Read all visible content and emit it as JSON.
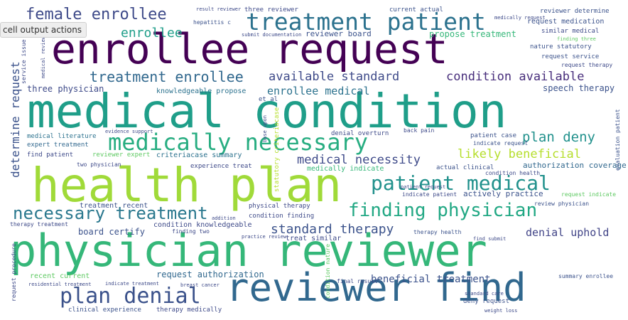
{
  "toolbar": {
    "cell_output_actions": "cell output actions"
  },
  "words": [
    {
      "t": "enrollee request",
      "c": "#440154"
    },
    {
      "t": "medical condition",
      "c": "#1f9e89"
    },
    {
      "t": "health plan",
      "c": "#a0da39"
    },
    {
      "t": "physician reviewer",
      "c": "#35b779"
    },
    {
      "t": "reviewer find",
      "c": "#31688e"
    },
    {
      "t": "treatment patient",
      "c": "#2c728e"
    },
    {
      "t": "medically necessary",
      "c": "#27ad81"
    },
    {
      "t": "patient medical",
      "c": "#21918c"
    },
    {
      "t": "finding physician",
      "c": "#22a884"
    },
    {
      "t": "necessary treatment",
      "c": "#2a788e"
    },
    {
      "t": "plan denial",
      "c": "#3b528b"
    },
    {
      "t": "female enrollee",
      "c": "#3e4a89"
    },
    {
      "t": "treatment enrollee",
      "c": "#31688e"
    },
    {
      "t": "available standard",
      "c": "#3e4a89"
    },
    {
      "t": "condition available",
      "c": "#472d7b"
    },
    {
      "t": "enrollee medical",
      "c": "#2c728e"
    },
    {
      "t": "medical necessity",
      "c": "#3e4a89"
    },
    {
      "t": "likely beneficial",
      "c": "#b5de2b"
    },
    {
      "t": "plan deny",
      "c": "#21918c"
    },
    {
      "t": "standard therapy",
      "c": "#3b528b"
    },
    {
      "t": "denial uphold",
      "c": "#414487"
    },
    {
      "t": "beneficial treatment",
      "c": "#3b528b"
    },
    {
      "t": "enrollee",
      "c": "#1f9e89"
    },
    {
      "t": "determine request",
      "c": "#3b528b"
    },
    {
      "t": "three physician",
      "c": "#3e4a89"
    },
    {
      "t": "knowledgeable propose",
      "c": "#2c728e"
    },
    {
      "t": "speech therapy",
      "c": "#3b528b"
    },
    {
      "t": "propose treatment",
      "c": "#35b779"
    },
    {
      "t": "reviewer board",
      "c": "#3b528b"
    },
    {
      "t": "request authorization",
      "c": "#31688e"
    },
    {
      "t": "authorization coverage",
      "c": "#31688e"
    },
    {
      "t": "actively practice",
      "c": "#3b528b"
    },
    {
      "t": "criteriacase summary",
      "c": "#2c728e"
    },
    {
      "t": "condition knowledgeable",
      "c": "#3e4a89"
    },
    {
      "t": "board certify",
      "c": "#3b528b"
    },
    {
      "t": "treatment recent",
      "c": "#3b528b"
    },
    {
      "t": "medical literature",
      "c": "#2c728e"
    },
    {
      "t": "expert treatment",
      "c": "#31688e"
    },
    {
      "t": "find patient",
      "c": "#3e4a89"
    },
    {
      "t": "reviewer expert",
      "c": "#5ec962"
    },
    {
      "t": "two physician",
      "c": "#3e4a89"
    },
    {
      "t": "experience treat",
      "c": "#3e4a89"
    },
    {
      "t": "medically indicate",
      "c": "#35b779"
    },
    {
      "t": "actual clinical",
      "c": "#3b528b"
    },
    {
      "t": "condition health",
      "c": "#3e4a89"
    },
    {
      "t": "indicate patient",
      "c": "#3e4a89"
    },
    {
      "t": "review physician",
      "c": "#3b528b"
    },
    {
      "t": "request indicate",
      "c": "#5ec962"
    },
    {
      "t": "patient case",
      "c": "#3b528b"
    },
    {
      "t": "denial overturn",
      "c": "#3e4a89"
    },
    {
      "t": "back pain",
      "c": "#3e4a89"
    },
    {
      "t": "indicate request",
      "c": "#3b528b"
    },
    {
      "t": "physical therapy",
      "c": "#3e4a89"
    },
    {
      "t": "condition finding",
      "c": "#3e4a89"
    },
    {
      "t": "treat similar",
      "c": "#3e4a89"
    },
    {
      "t": "therapy health",
      "c": "#3b528b"
    },
    {
      "t": "finding two",
      "c": "#3e4a89"
    },
    {
      "t": "practice review",
      "c": "#3e4a89"
    },
    {
      "t": "therapy treatment",
      "c": "#3e4a89"
    },
    {
      "t": "recent current",
      "c": "#5ec962"
    },
    {
      "t": "residential treatment",
      "c": "#3e4a89"
    },
    {
      "t": "indicate treatment",
      "c": "#3e4a89"
    },
    {
      "t": "clinical experience",
      "c": "#3b528b"
    },
    {
      "t": "therapy medically",
      "c": "#3e4a89"
    },
    {
      "t": "final result",
      "c": "#3e4a89"
    },
    {
      "t": "deny request",
      "c": "#3b528b"
    },
    {
      "t": "summary enrollee",
      "c": "#3b528b"
    },
    {
      "t": "three reviewer",
      "c": "#3e4a89"
    },
    {
      "t": "result reviewer",
      "c": "#3e4a89"
    },
    {
      "t": "current actual",
      "c": "#3b528b"
    },
    {
      "t": "reviewer determine",
      "c": "#3b528b"
    },
    {
      "t": "request medication",
      "c": "#3b528b"
    },
    {
      "t": "similar medical",
      "c": "#3e4a89"
    },
    {
      "t": "finding three",
      "c": "#5ec962"
    },
    {
      "t": "nature statutory",
      "c": "#3b528b"
    },
    {
      "t": "request service",
      "c": "#3b528b"
    },
    {
      "t": "request therapy",
      "c": "#3e4a89"
    },
    {
      "t": "hepatitis c",
      "c": "#3b528b"
    },
    {
      "t": "submit documentation",
      "c": "#3e4a89"
    },
    {
      "t": "service issue",
      "c": "#3e4a89"
    },
    {
      "t": "medical review",
      "c": "#3e4a89"
    },
    {
      "t": "et al",
      "c": "#3b528b"
    },
    {
      "t": "evidence support",
      "c": "#3e4a89"
    },
    {
      "t": "base upon",
      "c": "#3e4a89"
    },
    {
      "t": "addition",
      "c": "#3e4a89"
    },
    {
      "t": "statutory criteriacase",
      "c": "#b5de2b"
    },
    {
      "t": "request procedure",
      "c": "#3e4a89"
    },
    {
      "t": "condition nature",
      "c": "#5ec962"
    },
    {
      "t": "evaluation patient",
      "c": "#3b528b"
    },
    {
      "t": "standard care",
      "c": "#3e4a89"
    },
    {
      "t": "weight loss",
      "c": "#3e4a89"
    },
    {
      "t": "breast cancer",
      "c": "#3e4a89"
    },
    {
      "t": "find submit",
      "c": "#3e4a89"
    },
    {
      "t": "medically request",
      "c": "#3e4a89"
    },
    {
      "t": "patient request",
      "c": "#3e4a89"
    }
  ]
}
